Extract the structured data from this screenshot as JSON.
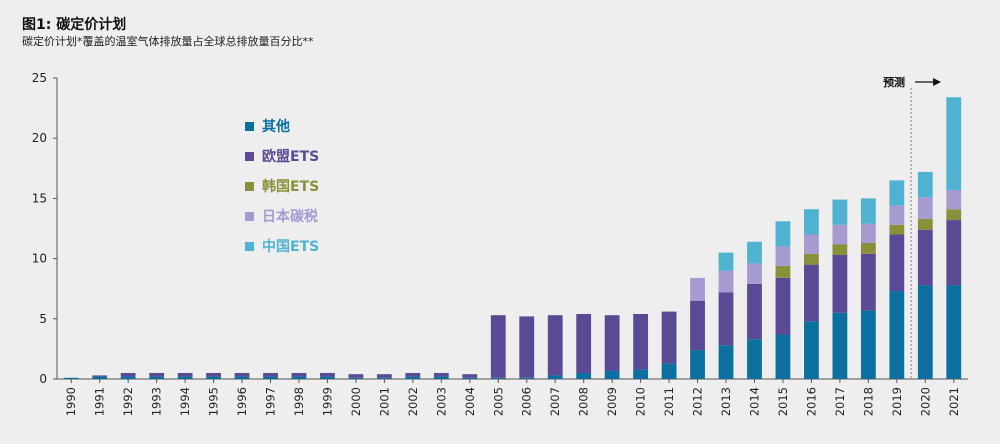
{
  "header": {
    "title": "图1: 碳定价计划",
    "subtitle": "碳定价计划*覆盖的温室气体排放量占全球总排放量百分比**"
  },
  "forecast_label": "预测",
  "chart_data": {
    "type": "bar",
    "stacked": true,
    "title": "图1: 碳定价计划",
    "subtitle": "碳定价计划*覆盖的温室气体排放量占全球总排放量百分比**",
    "ylim": [
      0,
      25
    ],
    "yticks": [
      0,
      5,
      10,
      15,
      20,
      25
    ],
    "grid": false,
    "legend_position": "upper-left",
    "categories": [
      "1990",
      "1991",
      "1992",
      "1993",
      "1994",
      "1995",
      "1996",
      "1997",
      "1998",
      "1999",
      "2000",
      "2001",
      "2002",
      "2003",
      "2004",
      "2005",
      "2006",
      "2007",
      "2008",
      "2009",
      "2010",
      "2011",
      "2012",
      "2013",
      "2014",
      "2015",
      "2016",
      "2017",
      "2018",
      "2019",
      "2020",
      "2021"
    ],
    "series": [
      {
        "name": "其他",
        "color": "#0b6fa0",
        "values": [
          0.1,
          0.2,
          0.2,
          0.2,
          0.2,
          0.2,
          0.2,
          0.2,
          0.2,
          0.2,
          0.1,
          0.1,
          0.2,
          0.2,
          0.1,
          0.1,
          0.1,
          0.3,
          0.5,
          0.7,
          0.8,
          1.3,
          2.4,
          2.8,
          3.3,
          3.7,
          4.8,
          5.5,
          5.7,
          7.3,
          7.8,
          7.8
        ]
      },
      {
        "name": "欧盟ETS",
        "color": "#5b4a93",
        "values": [
          0.0,
          0.1,
          0.3,
          0.3,
          0.3,
          0.3,
          0.3,
          0.3,
          0.3,
          0.3,
          0.3,
          0.3,
          0.3,
          0.3,
          0.3,
          5.2,
          5.1,
          5.0,
          4.9,
          4.6,
          4.6,
          4.3,
          4.1,
          4.4,
          4.6,
          4.7,
          4.7,
          4.8,
          4.7,
          4.7,
          4.6,
          5.4
        ]
      },
      {
        "name": "韩国ETS",
        "color": "#8a8f3a",
        "values": [
          0,
          0,
          0,
          0,
          0,
          0,
          0,
          0,
          0,
          0,
          0,
          0,
          0,
          0,
          0,
          0,
          0,
          0,
          0,
          0,
          0,
          0,
          0,
          0,
          0,
          1.0,
          0.9,
          0.9,
          0.9,
          0.8,
          0.9,
          0.9
        ]
      },
      {
        "name": "日本碳税",
        "color": "#a79ad0",
        "values": [
          0,
          0,
          0,
          0,
          0,
          0,
          0,
          0,
          0,
          0,
          0,
          0,
          0,
          0,
          0,
          0,
          0,
          0,
          0,
          0,
          0,
          0,
          1.9,
          1.8,
          1.7,
          1.6,
          1.6,
          1.6,
          1.6,
          1.6,
          1.8,
          1.6
        ]
      },
      {
        "name": "中国ETS",
        "color": "#4fb2d0",
        "values": [
          0,
          0,
          0,
          0,
          0,
          0,
          0,
          0,
          0,
          0,
          0,
          0,
          0,
          0,
          0,
          0,
          0,
          0,
          0,
          0,
          0,
          0,
          0,
          1.5,
          1.8,
          2.1,
          2.1,
          2.1,
          2.1,
          2.1,
          2.1,
          7.7
        ]
      }
    ]
  }
}
